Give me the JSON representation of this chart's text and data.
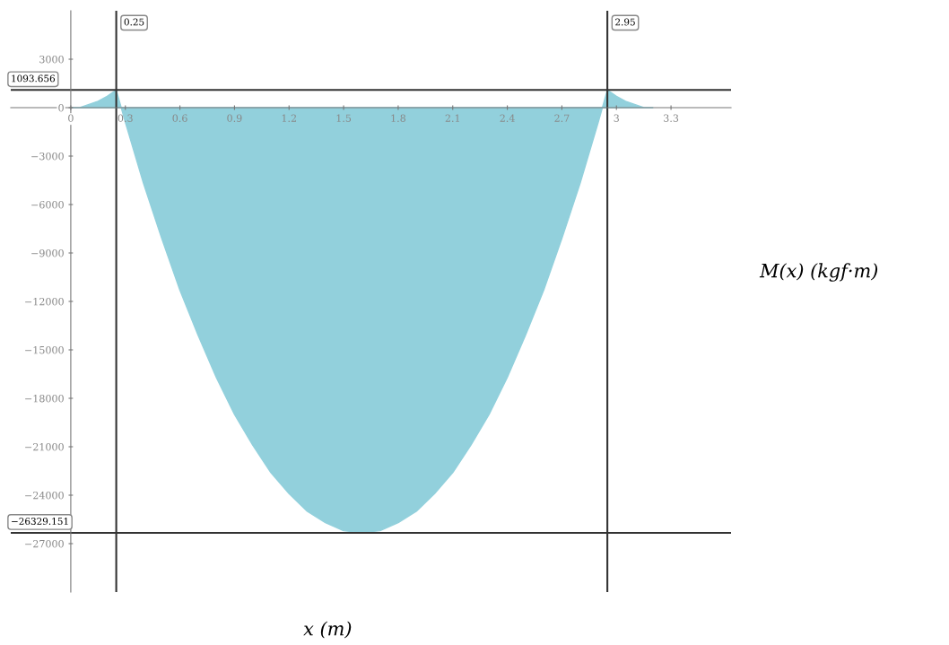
{
  "chart_data": {
    "type": "area",
    "xlabel": "x (m)",
    "ylabel": "M(x) (kgf·m)",
    "x": [
      0,
      0.05,
      0.1,
      0.15,
      0.2,
      0.25,
      0.3,
      0.4,
      0.5,
      0.6,
      0.7,
      0.8,
      0.9,
      1.0,
      1.1,
      1.2,
      1.3,
      1.4,
      1.5,
      1.6,
      1.7,
      1.8,
      1.9,
      2.0,
      2.1,
      2.2,
      2.3,
      2.4,
      2.5,
      2.6,
      2.7,
      2.8,
      2.9,
      2.95,
      3.0,
      3.05,
      3.1,
      3.15,
      3.2
    ],
    "series": [
      {
        "color": "#92d0dc",
        "values": [
          0,
          0,
          200,
          400,
          700,
          1093.656,
          -900,
          -4700,
          -8100,
          -11300,
          -14100,
          -16700,
          -19000,
          -20900,
          -22600,
          -23900,
          -25000,
          -25700,
          -26200,
          -26329.151,
          -26200,
          -25700,
          -25000,
          -23900,
          -22600,
          -20900,
          -19000,
          -16700,
          -14100,
          -11300,
          -8100,
          -4700,
          -900,
          1093.656,
          700,
          400,
          200,
          0,
          0
        ]
      }
    ],
    "xlim": [
      -0.33,
      3.63
    ],
    "ylim": [
      -30000,
      6000
    ],
    "xticks": [
      0,
      0.3,
      0.6,
      0.9,
      1.2,
      1.5,
      1.8,
      2.1,
      2.4,
      2.7,
      3,
      3.3
    ],
    "yticks": [
      3000,
      0,
      -3000,
      -6000,
      -9000,
      -12000,
      -15000,
      -18000,
      -21000,
      -24000,
      -27000
    ],
    "ref_lines": [
      {
        "axis": "x",
        "value": 0.25,
        "label": "0.25",
        "color": "#333333"
      },
      {
        "axis": "x",
        "value": 2.95,
        "label": "2.95",
        "color": "#333333"
      },
      {
        "axis": "y",
        "value": 1093.656,
        "label": "1093.656",
        "color": "#333333"
      },
      {
        "axis": "y",
        "value": -26329.151,
        "label": "−26329.151",
        "color": "#333333"
      }
    ],
    "grid": false,
    "legend": false
  }
}
